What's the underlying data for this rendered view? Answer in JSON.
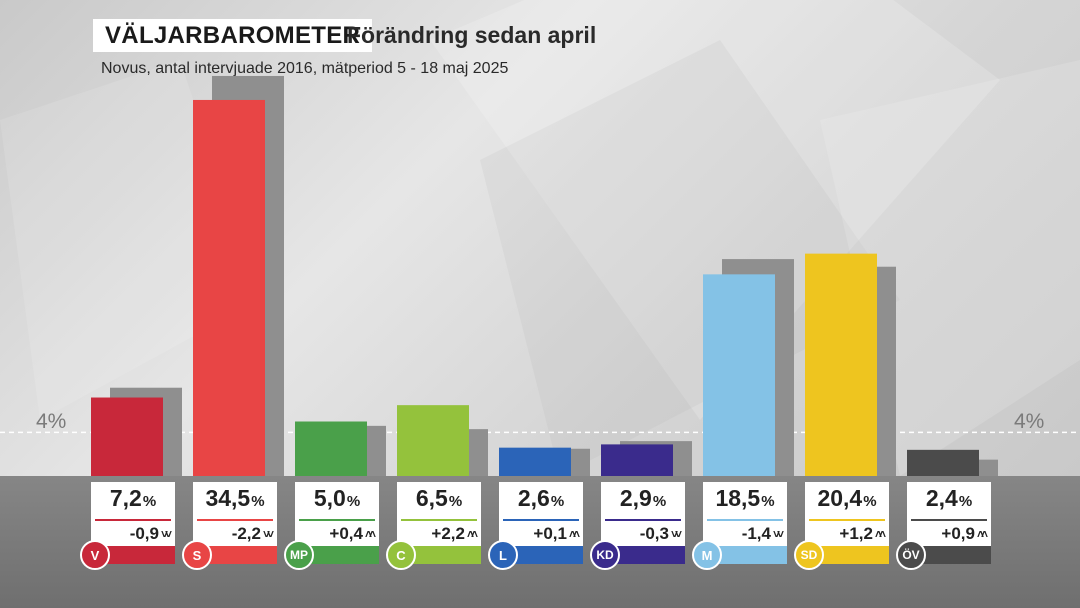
{
  "header": {
    "title": "VÄLJARBAROMETER",
    "subtitle": "Förändring sedan april",
    "source": "Novus, antal intervjuade 2016, mätperiod 5 - 18 maj 2025"
  },
  "threshold": {
    "label_left": "4%",
    "label_right": "4%",
    "value": 4
  },
  "chart_data": {
    "type": "bar",
    "title": "VÄLJARBAROMETER",
    "subtitle": "Förändring sedan april",
    "ylim": [
      0,
      40
    ],
    "unit": "%",
    "categories": [
      "V",
      "S",
      "MP",
      "C",
      "L",
      "KD",
      "M",
      "SD",
      "ÖV"
    ],
    "series": [
      {
        "values": [
          7.2,
          34.5,
          5.0,
          6.5,
          2.6,
          2.9,
          18.5,
          20.4,
          2.4
        ]
      },
      {
        "values": [
          8.1,
          36.7,
          4.6,
          4.3,
          2.5,
          3.2,
          19.9,
          19.2,
          1.5
        ]
      }
    ],
    "value_labels": [
      "7,2",
      "34,5",
      "5,0",
      "6,5",
      "2,6",
      "2,9",
      "18,5",
      "20,4",
      "2,4"
    ],
    "change_labels": [
      "-0,9",
      "-2,2",
      "+0,4",
      "+2,2",
      "+0,1",
      "-0,3",
      "-1,4",
      "+1,2",
      "+0,9"
    ],
    "change_direction": [
      "down",
      "down",
      "up",
      "up",
      "up",
      "down",
      "down",
      "up",
      "up"
    ],
    "colors": [
      "#c8283a",
      "#e84545",
      "#4aa04a",
      "#94c23c",
      "#2b64b8",
      "#3a2b8c",
      "#84c2e6",
      "#eec51f",
      "#4b4b4b"
    ],
    "previous_color": "#8f8f8f",
    "percent_sign": "%"
  }
}
